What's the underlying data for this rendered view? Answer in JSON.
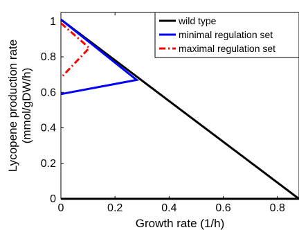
{
  "chart_data": {
    "type": "line",
    "xlabel": "Growth rate (1/h)",
    "ylabel_lines": [
      "Lycopene production rate",
      "(mmol/gDW/h)"
    ],
    "xlim": [
      0,
      0.88
    ],
    "ylim": [
      0,
      1.05
    ],
    "xticks": [
      0,
      0.2,
      0.4,
      0.6,
      0.8
    ],
    "yticks": [
      0,
      0.2,
      0.4,
      0.6,
      0.8,
      1
    ],
    "x_tick_labels": [
      "0",
      "0.2",
      "0.4",
      "0.6",
      "0.8"
    ],
    "y_tick_labels": [
      "0",
      "0.2",
      "0.4",
      "0.6",
      "0.8",
      "1"
    ],
    "grid": false,
    "legend_position": "top-right",
    "series": [
      {
        "name": "wild type",
        "color": "#000000",
        "dash": "solid",
        "points": [
          [
            0,
            1.01
          ],
          [
            0.88,
            0.0
          ],
          [
            0,
            0.0
          ]
        ]
      },
      {
        "name": "minimal regulation set",
        "color": "#0000ff",
        "dash": "solid",
        "points": [
          [
            0,
            1.01
          ],
          [
            0.28,
            0.67
          ],
          [
            0,
            0.59
          ]
        ]
      },
      {
        "name": "maximal regulation set",
        "color": "#ff0000",
        "dash": "dashdot",
        "points": [
          [
            0,
            0.99
          ],
          [
            0.105,
            0.85
          ],
          [
            0.005,
            0.69
          ]
        ]
      }
    ]
  }
}
